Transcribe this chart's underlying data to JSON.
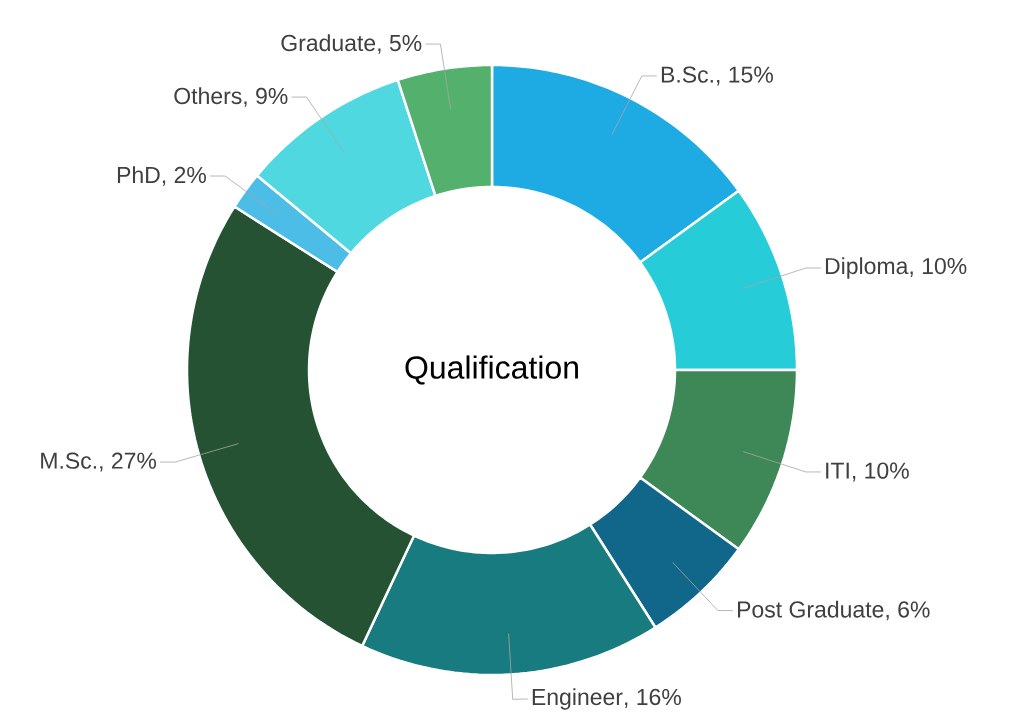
{
  "chart_data": {
    "type": "donut",
    "title": "Qualification",
    "categories": [
      "B.Sc.",
      "Diploma",
      "ITI",
      "Post Graduate",
      "Engineer",
      "M.Sc.",
      "PhD",
      "Others",
      "Graduate"
    ],
    "values": [
      15,
      10,
      10,
      6,
      16,
      27,
      2,
      9,
      5
    ],
    "colors": [
      "#1eabe3",
      "#26ccd8",
      "#3e8756",
      "#11678a",
      "#177b7f",
      "#245232",
      "#4bbde6",
      "#50d8e0",
      "#54b06d"
    ],
    "value_labels": [
      ", 15%",
      ", 10%",
      ", 10%",
      ", 6%",
      ", 16%",
      ", 27%",
      ", 2%",
      ", 9%",
      ", 5%"
    ]
  }
}
